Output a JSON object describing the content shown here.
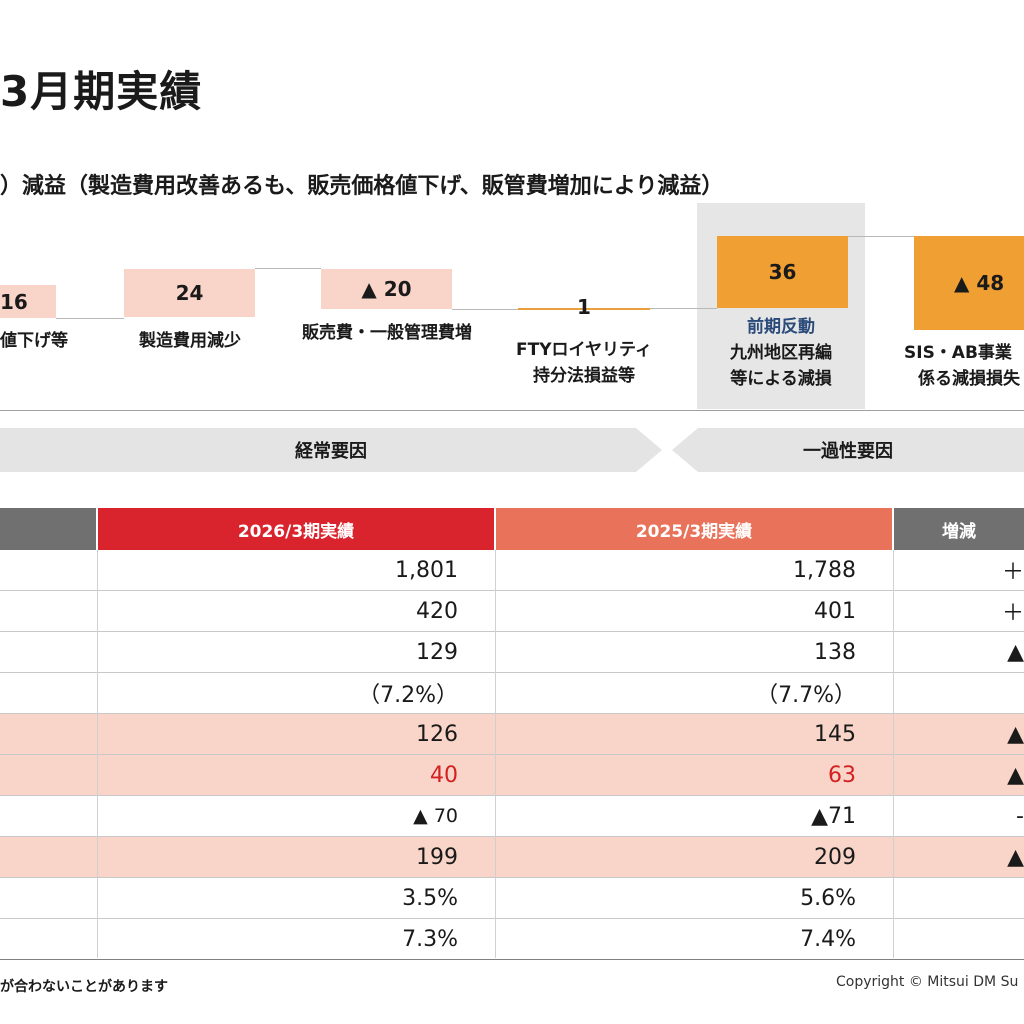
{
  "title": "3月期実績",
  "subtitle": "）減益（製造費用改善あるも、販売価格値下げ、販管費増加により減益）",
  "waterfall": {
    "items": [
      {
        "value": "16",
        "label": "値下げ等"
      },
      {
        "value": "24",
        "label": "製造費用減少"
      },
      {
        "value": "▲ 20",
        "label": "販売費・一般管理費増"
      },
      {
        "value": "1",
        "label_line1": "FTYロイヤリティ",
        "label_line2": "持分法損益等"
      },
      {
        "value": "36",
        "label_top": "前期反動",
        "label_line1": "九州地区再編",
        "label_line2": "等による減損"
      },
      {
        "value": "▲ 48",
        "label_line1": "SIS・AB事業",
        "label_line2": "係る減損損失"
      }
    ],
    "groups": [
      {
        "label": "経常要因"
      },
      {
        "label": "一過性要因"
      }
    ]
  },
  "table": {
    "headers": {
      "current": "2026/3期実績",
      "previous": "2025/3期実績",
      "change": "増減"
    },
    "colors": {
      "current": "#d9232d",
      "previous": "#e8735a",
      "gray": "#707070",
      "highlight": "#f8d5c8"
    },
    "rows": [
      {
        "current": "1,801",
        "previous": "1,788",
        "change": "＋",
        "highlight": false
      },
      {
        "current": "420",
        "previous": "401",
        "change": "＋",
        "highlight": false
      },
      {
        "current": "129",
        "previous": "138",
        "change": "▲",
        "highlight": false
      },
      {
        "current": "（7.2%）",
        "previous": "（7.7%）",
        "change": "",
        "highlight": false
      },
      {
        "current": "126",
        "previous": "145",
        "change": "▲",
        "highlight": true
      },
      {
        "current": "40",
        "previous": "63",
        "change": "▲",
        "highlight": true,
        "red": true
      },
      {
        "current": "▲ 70",
        "previous": "▲71",
        "change": "-",
        "highlight": false
      },
      {
        "current": "199",
        "previous": "209",
        "change": "▲",
        "highlight": true
      },
      {
        "current": "3.5%",
        "previous": "5.6%",
        "change": "",
        "highlight": false
      },
      {
        "current": "7.3%",
        "previous": "7.4%",
        "change": "",
        "highlight": false
      }
    ]
  },
  "footer": {
    "note": "が合わないことがあります",
    "copyright": "Copyright © Mitsui DM Su"
  }
}
